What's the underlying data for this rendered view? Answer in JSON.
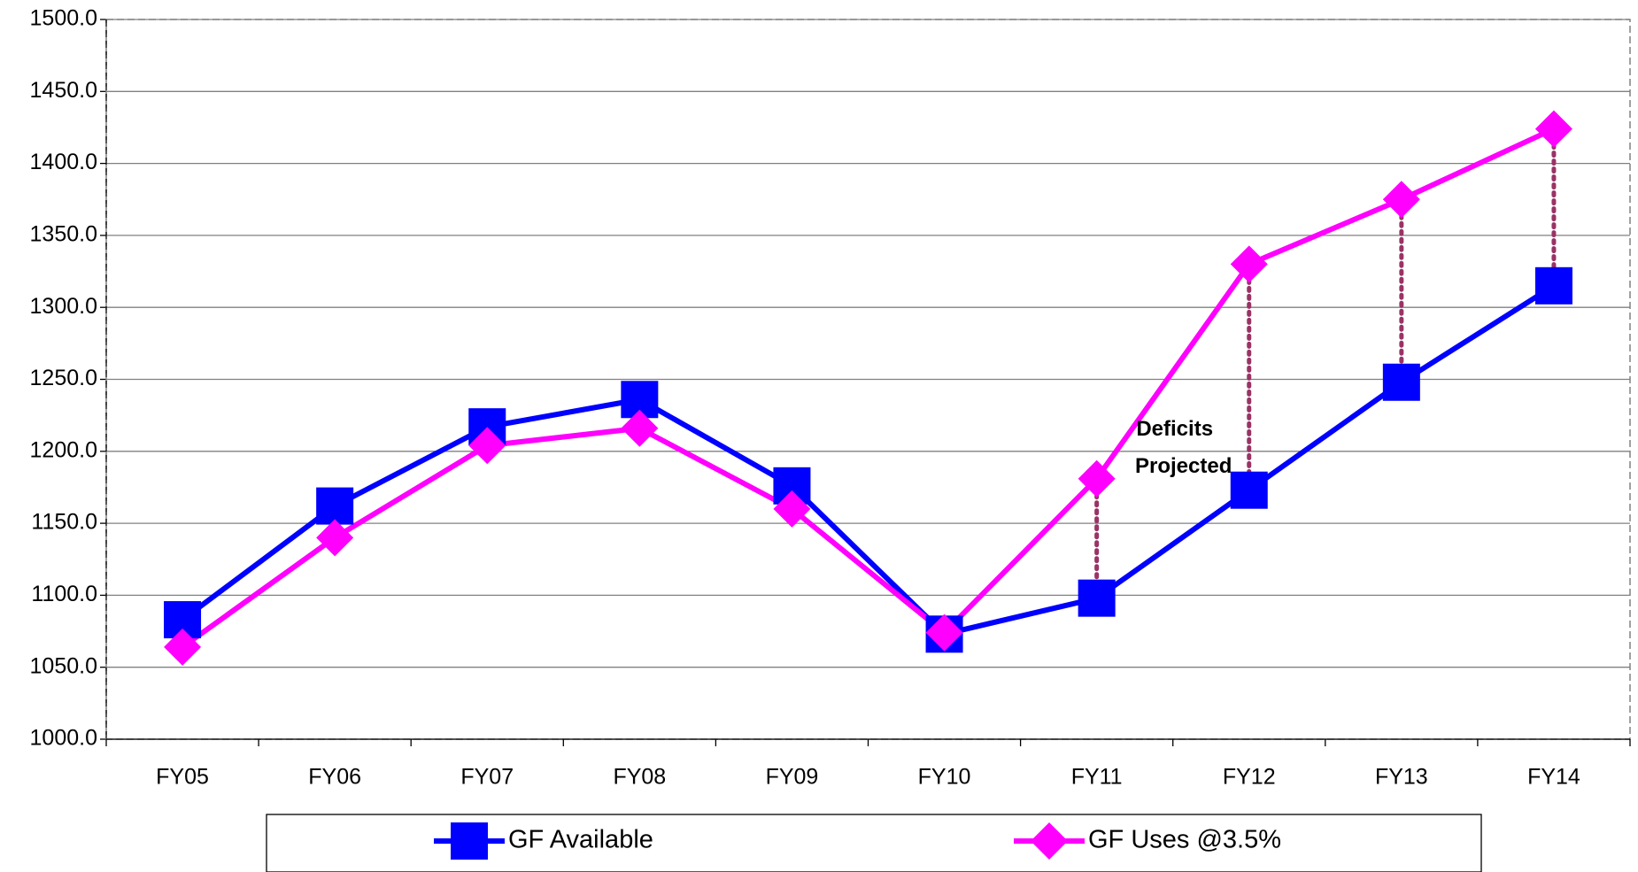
{
  "chart_data": {
    "type": "line",
    "categories": [
      "FY05",
      "FY06",
      "FY07",
      "FY08",
      "FY09",
      "FY10",
      "FY11",
      "FY12",
      "FY13",
      "FY14"
    ],
    "series": [
      {
        "name": "GF Available",
        "color": "#0000ff",
        "marker": "square",
        "values": [
          1083,
          1162,
          1217,
          1236,
          1176,
          1073,
          1098,
          1173,
          1248,
          1315
        ]
      },
      {
        "name": "GF Uses @3.5%",
        "color": "#ff00ff",
        "marker": "diamond",
        "values": [
          1064,
          1140,
          1204,
          1216,
          1160,
          1074,
          1181,
          1330,
          1375,
          1424
        ]
      }
    ],
    "ylim": [
      1000,
      1500
    ],
    "yticks": [
      {
        "value": 1000,
        "label": "1000.0"
      },
      {
        "value": 1050,
        "label": "1050.0"
      },
      {
        "value": 1100,
        "label": "1100.0"
      },
      {
        "value": 1150,
        "label": "1150.0"
      },
      {
        "value": 1200,
        "label": "1200.0"
      },
      {
        "value": 1250,
        "label": "1250.0"
      },
      {
        "value": 1300,
        "label": "1300.0"
      },
      {
        "value": 1350,
        "label": "1350.0"
      },
      {
        "value": 1400,
        "label": "1400.0"
      },
      {
        "value": 1450,
        "label": "1450.0"
      },
      {
        "value": 1500,
        "label": "1500.0"
      }
    ],
    "grid": true,
    "legend": "bottom",
    "annotation": [
      "Deficits",
      "Projected"
    ]
  }
}
